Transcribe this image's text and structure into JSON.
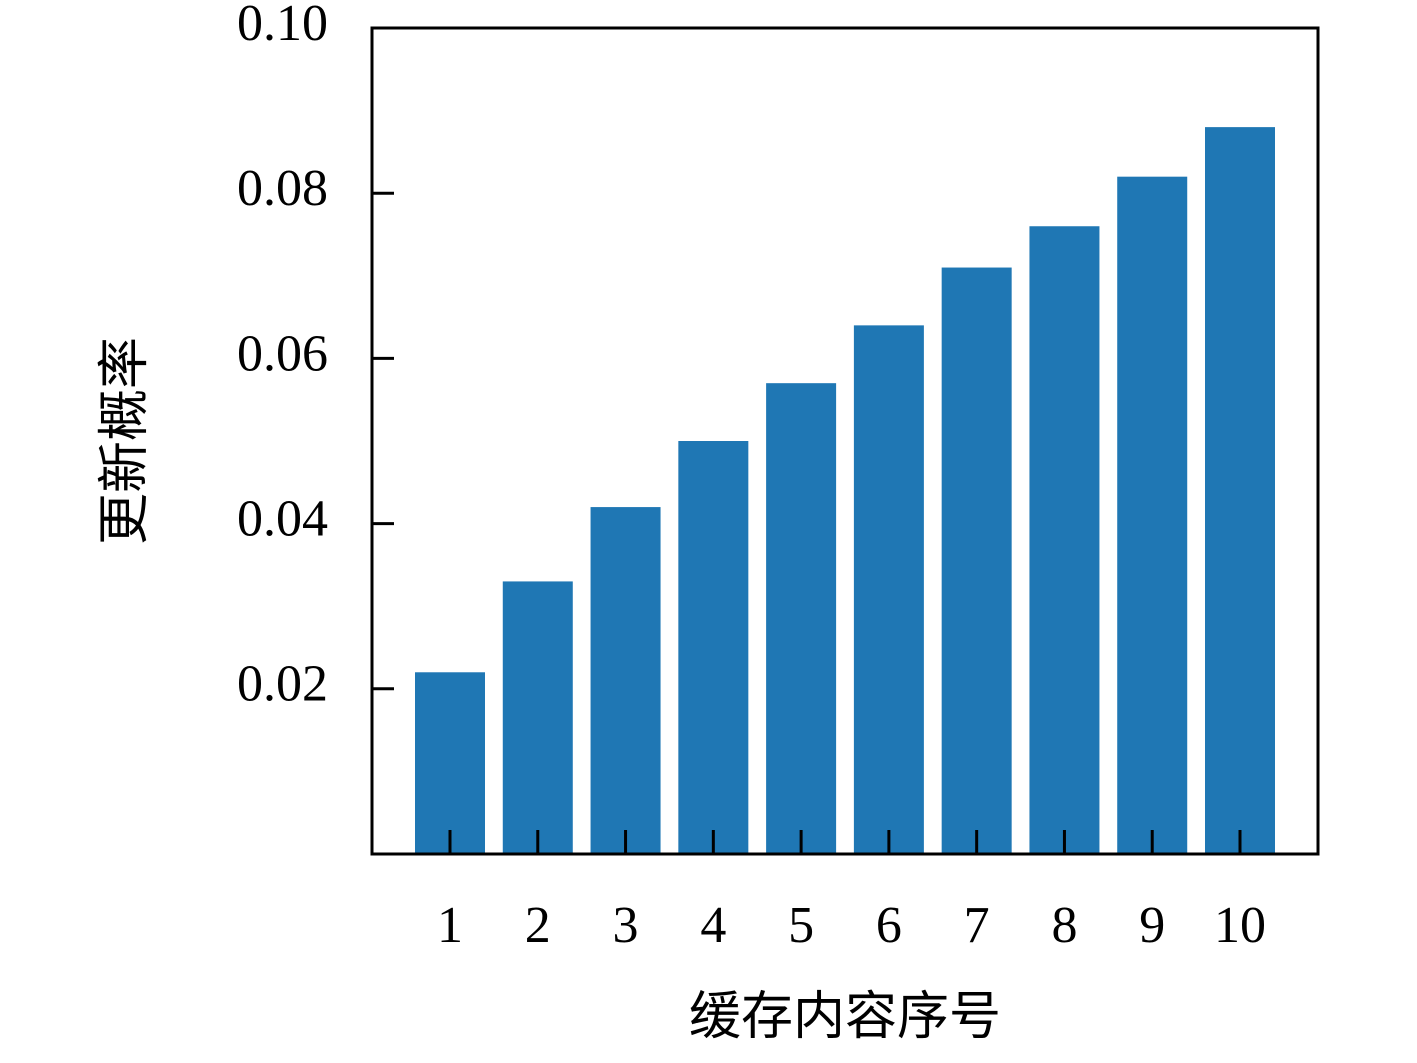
{
  "chart_data": {
    "type": "bar",
    "x_label": "缓存内容序号",
    "y_label": "更新概率",
    "categories": [
      "1",
      "2",
      "3",
      "4",
      "5",
      "6",
      "7",
      "8",
      "9",
      "10"
    ],
    "values": [
      0.022,
      0.033,
      0.042,
      0.05,
      0.057,
      0.064,
      0.071,
      0.076,
      0.082,
      0.088
    ],
    "color": "#1f77b4",
    "ylim": [
      0,
      0.1
    ],
    "yticks": [
      0.02,
      0.04,
      0.06,
      0.08,
      {
        "value": 0.1,
        "label": "0.10"
      }
    ],
    "grid": false
  }
}
